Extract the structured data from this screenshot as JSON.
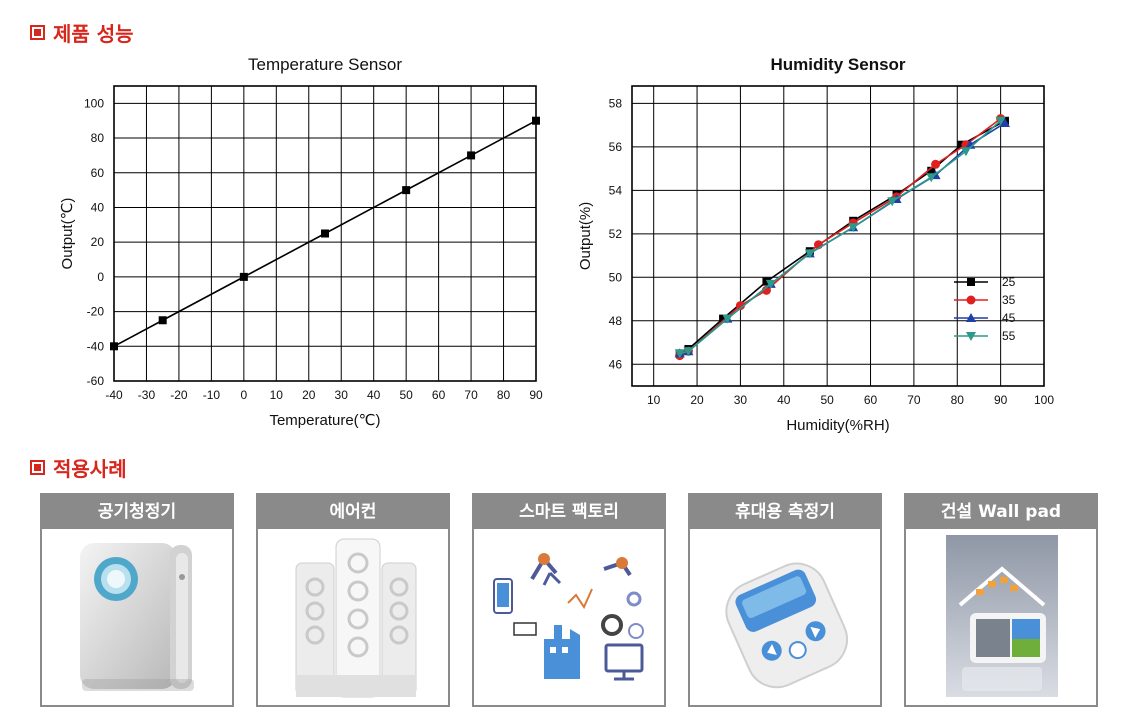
{
  "sections": {
    "performance": "제품 성능",
    "applications": "적용사례"
  },
  "chart_data": [
    {
      "type": "line",
      "title": "Temperature Sensor",
      "xlabel": "Temperature(℃)",
      "ylabel": "Output(℃)",
      "xlim": [
        -40,
        90
      ],
      "ylim": [
        -60,
        110
      ],
      "xticks": [
        -40,
        -30,
        -20,
        -10,
        0,
        10,
        20,
        30,
        40,
        50,
        60,
        70,
        80,
        90
      ],
      "yticks": [
        -60,
        -40,
        -20,
        0,
        20,
        40,
        60,
        80,
        100
      ],
      "grid": true,
      "series": [
        {
          "color": "#000000",
          "marker": "square",
          "x": [
            -40,
            -25,
            0,
            25,
            50,
            70,
            90
          ],
          "y": [
            -40,
            -25,
            0,
            25,
            50,
            70,
            90
          ]
        }
      ]
    },
    {
      "type": "line",
      "title": "Humidity Sensor",
      "xlabel": "Humidity(%RH)",
      "ylabel": "Output(%)",
      "xlim": [
        5,
        100
      ],
      "ylim": [
        45,
        58.8
      ],
      "xticks": [
        10,
        20,
        30,
        40,
        50,
        60,
        70,
        80,
        90,
        100
      ],
      "yticks": [
        46,
        48,
        50,
        52,
        54,
        56,
        58
      ],
      "grid": true,
      "legend": "right",
      "series": [
        {
          "name": "25",
          "color": "#000000",
          "marker": "square",
          "x": [
            16,
            18,
            26,
            36,
            46,
            56,
            66,
            74,
            81,
            91
          ],
          "y": [
            46.5,
            46.7,
            48.1,
            49.8,
            51.2,
            52.6,
            53.8,
            54.9,
            56.1,
            57.2
          ]
        },
        {
          "name": "35",
          "color": "#e02020",
          "marker": "circle",
          "x": [
            16,
            18,
            30,
            36,
            48,
            56,
            66,
            75,
            82,
            90
          ],
          "y": [
            46.4,
            46.6,
            48.7,
            49.4,
            51.5,
            52.5,
            53.7,
            55.2,
            56.1,
            57.3
          ]
        },
        {
          "name": "45",
          "color": "#1f3fa8",
          "marker": "triangle-up",
          "x": [
            16,
            18,
            27,
            37,
            46,
            56,
            66,
            75,
            83,
            91
          ],
          "y": [
            46.5,
            46.6,
            48.1,
            49.7,
            51.1,
            52.3,
            53.6,
            54.7,
            56.1,
            57.1
          ]
        },
        {
          "name": "55",
          "color": "#2a9a8a",
          "marker": "triangle-down",
          "x": [
            16,
            18,
            27,
            37,
            46,
            56,
            65,
            74,
            82,
            90
          ],
          "y": [
            46.5,
            46.6,
            48.1,
            49.7,
            51.1,
            52.3,
            53.5,
            54.6,
            55.8,
            57.2
          ]
        }
      ]
    }
  ],
  "applications": [
    {
      "label": "공기청정기",
      "icon": "air-purifier-icon"
    },
    {
      "label": "에어컨",
      "icon": "air-conditioner-icon"
    },
    {
      "label": "스마트 팩토리",
      "icon": "smart-factory-icon"
    },
    {
      "label": "휴대용 측정기",
      "icon": "portable-meter-icon"
    },
    {
      "label": "건설 Wall pad",
      "icon": "wall-pad-icon"
    }
  ]
}
